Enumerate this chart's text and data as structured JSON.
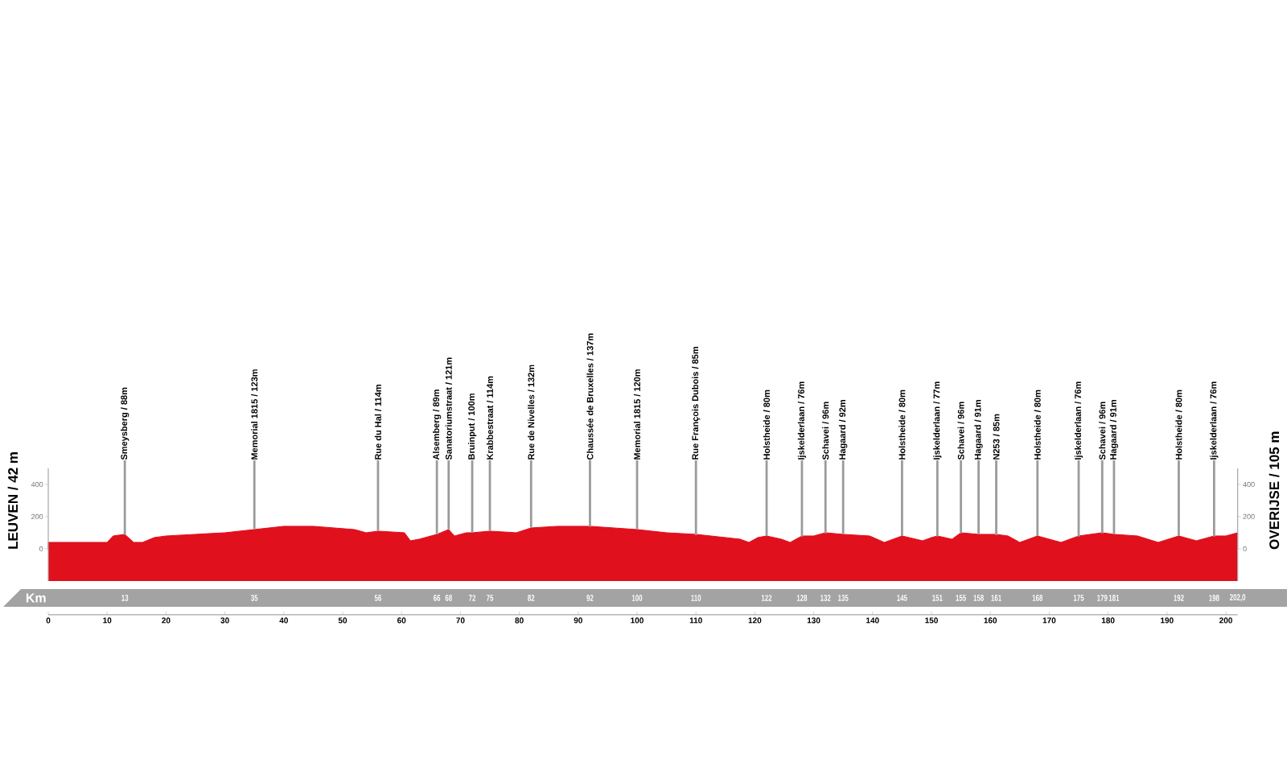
{
  "chart_data": {
    "type": "area",
    "ylabel": "LEUVEN / 42 m",
    "y2label": "OVERIJSE / 105 m",
    "color": "#e0101c",
    "x": [
      0,
      3,
      8,
      10,
      11,
      13,
      14.5,
      16,
      18,
      20,
      25,
      30,
      35,
      40,
      45,
      52,
      54,
      56,
      60.5,
      61.5,
      63,
      66,
      68,
      69,
      71,
      72,
      75,
      79.5,
      82,
      86.5,
      92,
      100,
      105,
      110,
      117.5,
      119,
      120.5,
      122,
      124.5,
      126,
      128,
      130,
      132,
      135,
      139.5,
      142,
      145,
      148.5,
      150,
      151,
      153.5,
      155,
      158,
      161,
      163,
      165,
      168,
      172,
      175,
      179,
      181,
      185,
      188.5,
      192,
      195,
      198,
      200,
      202
    ],
    "values": [
      40,
      40,
      40,
      40,
      80,
      90,
      40,
      40,
      70,
      80,
      90,
      100,
      120,
      140,
      140,
      120,
      100,
      110,
      100,
      50,
      60,
      90,
      120,
      80,
      100,
      100,
      110,
      100,
      130,
      140,
      140,
      120,
      100,
      90,
      60,
      40,
      70,
      80,
      60,
      40,
      80,
      80,
      100,
      90,
      80,
      40,
      80,
      50,
      70,
      80,
      60,
      100,
      90,
      90,
      80,
      40,
      80,
      40,
      80,
      100,
      90,
      80,
      40,
      80,
      50,
      80,
      80,
      100
    ],
    "xlim": [
      0,
      202
    ],
    "xticks": [
      0,
      10,
      20,
      30,
      40,
      50,
      60,
      70,
      80,
      90,
      100,
      110,
      120,
      130,
      140,
      150,
      160,
      170,
      180,
      190,
      200
    ],
    "ylim": [
      -200,
      500
    ],
    "yticks": [
      0,
      200,
      400
    ],
    "y2lim": [
      -200,
      500
    ],
    "y2ticks": [
      0,
      200,
      400
    ],
    "bands": [
      {
        "axis": "y",
        "from": -200,
        "to": 0,
        "color": "#e0101c"
      }
    ],
    "x2label": "Km",
    "x2lim": [
      0,
      202
    ],
    "x2ticks": [
      13,
      35,
      56,
      66,
      68,
      72,
      75,
      82,
      92,
      100,
      110,
      122,
      128,
      132,
      135,
      145,
      151,
      155,
      158,
      161,
      168,
      175,
      179,
      181,
      192,
      198,
      {
        "value": 202,
        "label": "202,0"
      }
    ],
    "annotations": [
      {
        "text": "Smeysberg / 88m",
        "x": 13,
        "y": 88
      },
      {
        "text": "Memorial 1815 / 123m",
        "x": 35,
        "y": 123
      },
      {
        "text": "Rue du Hal / 114m",
        "x": 56,
        "y": 114
      },
      {
        "text": "Alsemberg / 89m",
        "x": 66,
        "y": 89
      },
      {
        "text": "Sanatoriumstraat / 121m",
        "x": 68,
        "y": 121
      },
      {
        "text": "Bruinput / 100m",
        "x": 72,
        "y": 100
      },
      {
        "text": "Krabbestraat / 114m",
        "x": 75,
        "y": 114
      },
      {
        "text": "Rue de Nivelles / 132m",
        "x": 82,
        "y": 132
      },
      {
        "text": "Chaussée de Bruxelles / 137m",
        "x": 92,
        "y": 137
      },
      {
        "text": "Memorial 1815 / 120m",
        "x": 100,
        "y": 120
      },
      {
        "text": "Rue François Dubois / 85m",
        "x": 110,
        "y": 85
      },
      {
        "text": "Holstheide / 80m",
        "x": 122,
        "y": 80
      },
      {
        "text": "Ijskelderlaan / 76m",
        "x": 128,
        "y": 76
      },
      {
        "text": "Schavei / 96m",
        "x": 132,
        "y": 96
      },
      {
        "text": "Hagaard / 92m",
        "x": 135,
        "y": 92
      },
      {
        "text": "Holstheide / 80m",
        "x": 145,
        "y": 80
      },
      {
        "text": "Ijskelderlaan / 77m",
        "x": 151,
        "y": 77
      },
      {
        "text": "Schavei / 96m",
        "x": 155,
        "y": 96
      },
      {
        "text": "Hagaard / 91m",
        "x": 158,
        "y": 91
      },
      {
        "text": "N253 / 85m",
        "x": 161,
        "y": 85
      },
      {
        "text": "Holstheide / 80m",
        "x": 168,
        "y": 80
      },
      {
        "text": "Ijskelderlaan / 76m",
        "x": 175,
        "y": 76
      },
      {
        "text": "Schavei / 96m",
        "x": 179,
        "y": 96
      },
      {
        "text": "Hagaard / 91m",
        "x": 181,
        "y": 91
      },
      {
        "text": "Holstheide / 80m",
        "x": 192,
        "y": 80
      },
      {
        "text": "Ijskelderlaan / 76m",
        "x": 198,
        "y": 76
      }
    ]
  }
}
